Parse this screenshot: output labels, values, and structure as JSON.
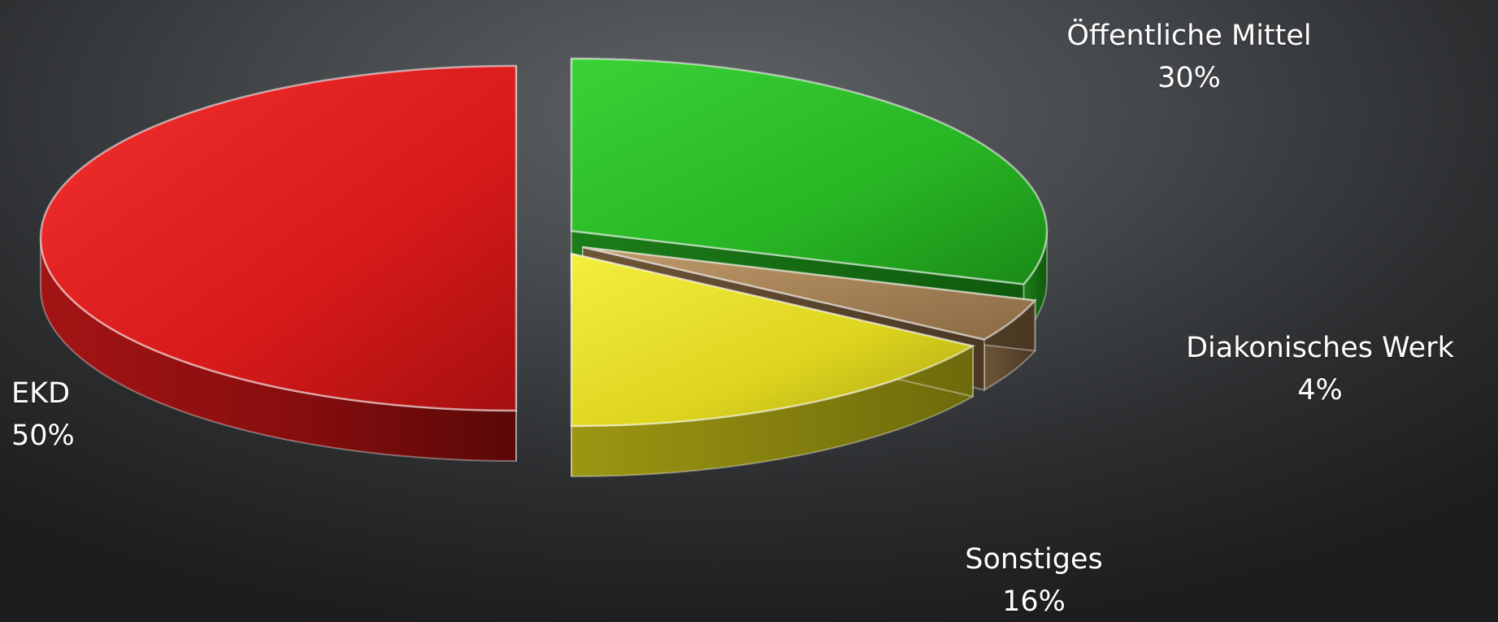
{
  "chart_data": {
    "type": "pie",
    "style": "3d-exploded",
    "background_color": "#3a3d40",
    "slices": [
      {
        "label": "EKD",
        "value": 50,
        "percent_label": "50%",
        "color": "#e01b1b"
      },
      {
        "label": "Öffentliche Mittel",
        "value": 30,
        "percent_label": "30%",
        "color": "#2ec42a"
      },
      {
        "label": "Diakonisches Werk",
        "value": 4,
        "percent_label": "4%",
        "color": "#a8845a"
      },
      {
        "label": "Sonstiges",
        "value": 16,
        "percent_label": "16%",
        "color": "#e6e02a"
      }
    ],
    "title": "",
    "legend": "none",
    "label_color": "#ffffff"
  }
}
